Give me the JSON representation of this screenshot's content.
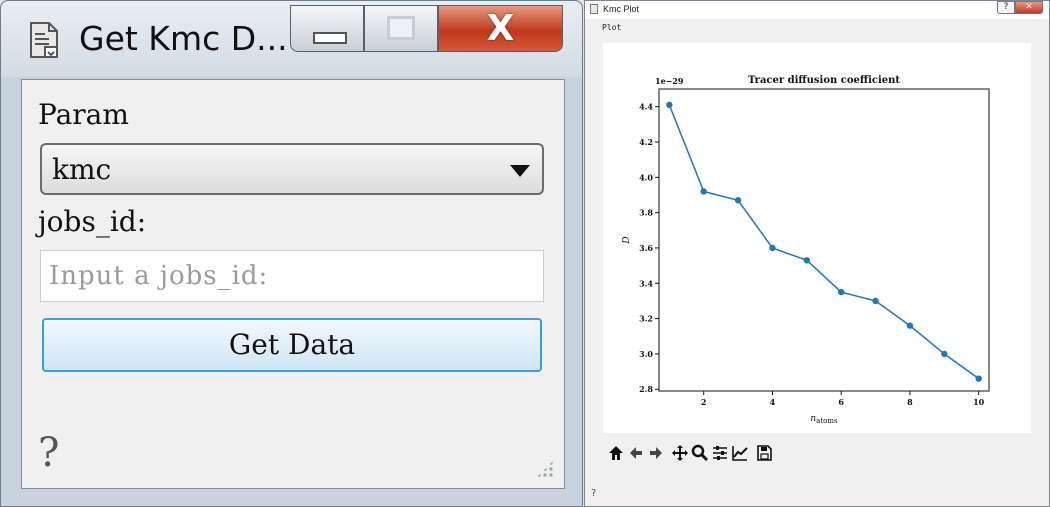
{
  "left_window": {
    "title": "Get Kmc D...",
    "param_label": "Param",
    "param_selected": "kmc",
    "jobs_label": "jobs_id:",
    "jobs_placeholder": "Input a jobs_id:",
    "jobs_value": "",
    "button_label": "Get Data",
    "help_glyph": "?"
  },
  "right_window": {
    "title": "Kmc Plot",
    "menu_label": "Plot",
    "help_glyph": "?",
    "titlebar_help": "?",
    "titlebar_close": "✕",
    "toolbar_icons": [
      "home-icon",
      "back-icon",
      "forward-icon",
      "pan-icon",
      "zoom-icon",
      "configure-icon",
      "edit-axis-icon",
      "save-icon"
    ]
  },
  "chart_data": {
    "type": "line",
    "title": "Tracer diffusion coefficient",
    "xlabel": "n_atoms",
    "ylabel": "D",
    "y_offset_label": "1e−29",
    "x": [
      1,
      2,
      3,
      4,
      5,
      6,
      7,
      8,
      9,
      10
    ],
    "y": [
      4.41,
      3.92,
      3.87,
      3.6,
      3.53,
      3.35,
      3.3,
      3.16,
      3.0,
      2.86
    ],
    "xlim": [
      0.7,
      10.3
    ],
    "ylim": [
      2.79,
      4.5
    ],
    "xticks": [
      2,
      4,
      6,
      8,
      10
    ],
    "yticks": [
      2.8,
      3.0,
      3.2,
      3.4,
      3.6,
      3.8,
      4.0,
      4.2,
      4.4
    ],
    "color": "#1f77b4",
    "grid": false
  }
}
